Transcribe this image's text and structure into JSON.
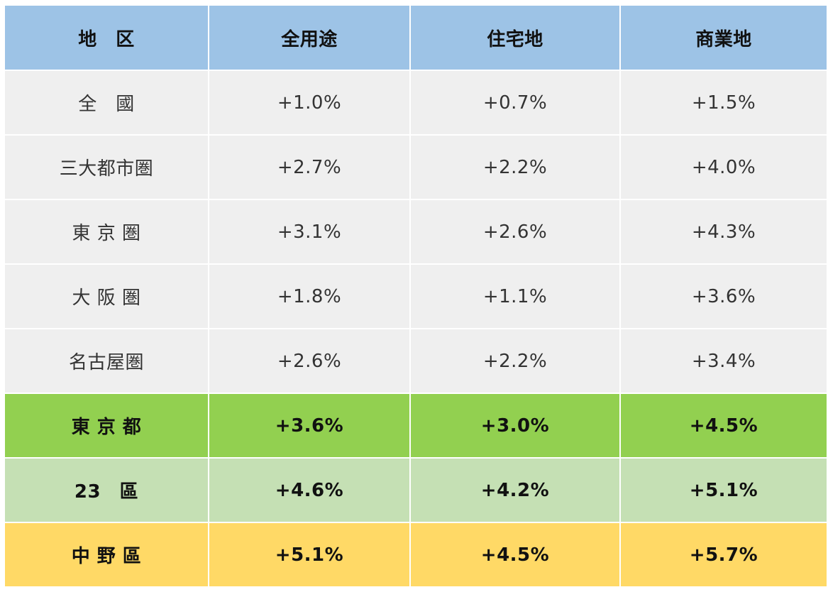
{
  "headers": [
    "地　区",
    "全用途",
    "住宅地",
    "商業地"
  ],
  "rows": [
    {
      "region": "全　國",
      "all": "+1.0%",
      "residential": "+0.7%",
      "commercial": "+1.5%"
    },
    {
      "region": "三大都市圏",
      "all": "+2.7%",
      "residential": "+2.2%",
      "commercial": "+4.0%"
    },
    {
      "region": "東 京 圏",
      "all": "+3.1%",
      "residential": "+2.6%",
      "commercial": "+4.3%"
    },
    {
      "region": "大 阪 圏",
      "all": "+1.8%",
      "residential": "+1.1%",
      "commercial": "+3.6%"
    },
    {
      "region": "名古屋圏",
      "all": "+2.6%",
      "residential": "+2.2%",
      "commercial": "+3.4%"
    },
    {
      "region": "東 京 都",
      "all": "+3.6%",
      "residential": "+3.0%",
      "commercial": "+4.5%"
    },
    {
      "region": "23　區",
      "all": "+4.6%",
      "residential": "+4.2%",
      "commercial": "+5.1%"
    },
    {
      "region": "中 野 區",
      "all": "+5.1%",
      "residential": "+4.5%",
      "commercial": "+5.7%"
    }
  ],
  "colors": {
    "header": "#9dc3e6",
    "plain_row": "#efefef",
    "tokyo_row": "#92d050",
    "ward_row": "#c5e0b4",
    "nakano_row": "#ffd966"
  }
}
